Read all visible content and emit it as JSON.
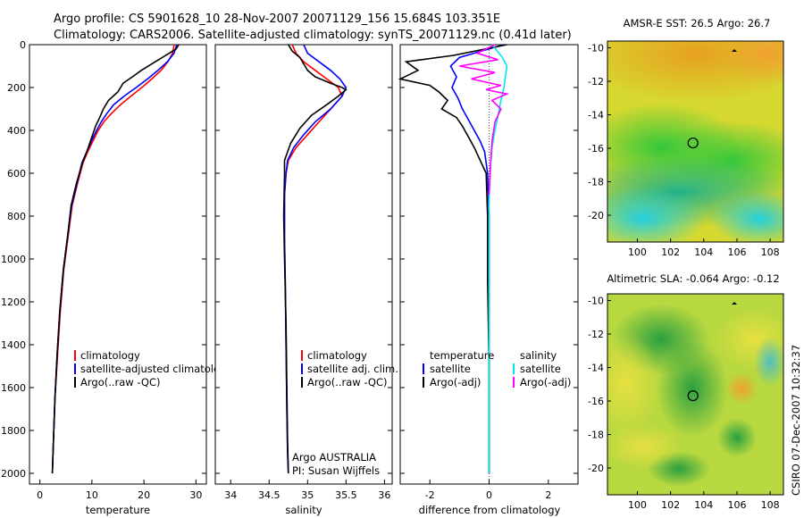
{
  "header": {
    "title_line1": "Argo profile: CS 5901628_10 28-Nov-2007 20071129_156 15.684S 103.351E",
    "title_line2": "Climatology: CARS2006. Satellite-adjusted climatology: synTS_20071129.nc (0.41d later)"
  },
  "footer": {
    "argo_label_1": "Argo AUSTRALIA",
    "argo_label_2": "PI: Susan Wijffels",
    "side_stamp": "CSIRO 07-Dec-2007 10:32:37"
  },
  "colors": {
    "climatology": "#ff0000",
    "satellite": "#0000ff",
    "argo": "#000000",
    "salinity_satellite": "#00e5ee",
    "salinity_argo": "#ff00ff"
  },
  "chart_data": [
    {
      "id": "temperature",
      "type": "line",
      "xlabel": "temperature",
      "ylabel": "",
      "xlim": [
        -2,
        32
      ],
      "ylim": [
        2050,
        0
      ],
      "xticks": [
        0,
        10,
        20,
        30
      ],
      "yticks": [
        0,
        200,
        400,
        600,
        800,
        1000,
        1200,
        1400,
        1600,
        1800,
        2000
      ],
      "legend": [
        "climatology",
        "satellite-adjusted climatology",
        "Argo(..raw -QC)"
      ],
      "series": [
        {
          "name": "climatology",
          "color": "#ff0000",
          "x": [
            25.8,
            25.5,
            24.6,
            23.3,
            21.5,
            19.6,
            17.5,
            15.5,
            13.8,
            12.3,
            11.2,
            10.2,
            9.2,
            8.3,
            7.2,
            6.2,
            5.4,
            4.6,
            3.9,
            3.4,
            2.9,
            2.6,
            2.4
          ],
          "y": [
            0,
            40,
            80,
            120,
            160,
            200,
            240,
            280,
            320,
            360,
            400,
            450,
            500,
            550,
            650,
            750,
            900,
            1050,
            1250,
            1450,
            1650,
            1850,
            2000
          ]
        },
        {
          "name": "satellite-adjusted climatology",
          "color": "#0000ff",
          "x": [
            26.3,
            25.8,
            24.5,
            22.7,
            20.7,
            18.5,
            16.2,
            14.2,
            12.9,
            11.8,
            10.9,
            9.9,
            9.0,
            8.1,
            7.1,
            6.1,
            5.3,
            4.5,
            3.8,
            3.3,
            2.9,
            2.6,
            2.4
          ],
          "y": [
            0,
            40,
            80,
            120,
            160,
            200,
            240,
            280,
            320,
            360,
            400,
            450,
            500,
            550,
            650,
            750,
            900,
            1050,
            1250,
            1450,
            1650,
            1850,
            2000
          ]
        },
        {
          "name": "Argo(..raw -QC)",
          "color": "#000000",
          "x": [
            26.7,
            26.2,
            23.5,
            21.5,
            19.5,
            17.8,
            16.0,
            15.0,
            13.2,
            12.2,
            11.5,
            10.7,
            10.0,
            9.0,
            8.2,
            7.0,
            6.0,
            5.3,
            4.5,
            3.8,
            3.3,
            2.9,
            2.6,
            2.4
          ],
          "y": [
            0,
            20,
            60,
            90,
            120,
            150,
            180,
            220,
            260,
            300,
            340,
            380,
            430,
            500,
            550,
            650,
            750,
            900,
            1050,
            1250,
            1450,
            1650,
            1850,
            2000
          ]
        }
      ]
    },
    {
      "id": "salinity",
      "type": "line",
      "xlabel": "salinity",
      "ylabel": "",
      "xlim": [
        33.8,
        36.1
      ],
      "ylim": [
        2050,
        0
      ],
      "xticks": [
        34,
        34.5,
        35,
        35.5,
        36
      ],
      "legend": [
        "climatology",
        "satellite adj. clim.",
        "Argo(..raw -QC)"
      ],
      "series": [
        {
          "name": "climatology",
          "color": "#ff0000",
          "x": [
            34.8,
            34.85,
            34.95,
            35.1,
            35.25,
            35.4,
            35.45,
            35.3,
            35.15,
            35.0,
            34.85,
            34.75,
            34.72,
            34.7,
            34.7,
            34.71,
            34.72,
            34.73,
            34.74,
            34.75
          ],
          "y": [
            0,
            40,
            80,
            120,
            160,
            200,
            240,
            300,
            360,
            420,
            480,
            540,
            600,
            700,
            900,
            1100,
            1400,
            1700,
            1900,
            2000
          ]
        },
        {
          "name": "satellite adj. clim.",
          "color": "#0000ff",
          "x": [
            34.95,
            35.0,
            35.15,
            35.3,
            35.42,
            35.5,
            35.45,
            35.3,
            35.1,
            34.95,
            34.82,
            34.74,
            34.72,
            34.7,
            34.7,
            34.71,
            34.72,
            34.73,
            34.74,
            34.75
          ],
          "y": [
            0,
            40,
            80,
            120,
            160,
            200,
            240,
            300,
            360,
            420,
            480,
            540,
            600,
            700,
            900,
            1100,
            1400,
            1700,
            1900,
            2000
          ]
        },
        {
          "name": "Argo(..raw -QC)",
          "color": "#000000",
          "x": [
            34.75,
            34.8,
            34.9,
            34.95,
            35.0,
            35.1,
            35.3,
            35.45,
            35.5,
            35.4,
            35.25,
            35.05,
            34.9,
            34.78,
            34.7,
            34.7,
            34.69,
            34.7,
            34.72,
            34.73,
            34.74,
            34.75
          ],
          "y": [
            0,
            30,
            60,
            90,
            120,
            150,
            180,
            200,
            210,
            240,
            280,
            330,
            390,
            460,
            540,
            600,
            800,
            1000,
            1300,
            1600,
            1850,
            2000
          ]
        }
      ]
    },
    {
      "id": "difference",
      "type": "line",
      "xlabel": "difference from climatology",
      "ylabel": "",
      "xlim": [
        -3,
        3
      ],
      "ylim": [
        2050,
        0
      ],
      "xticks": [
        -2,
        0,
        2
      ],
      "legend_temperature_header": "temperature",
      "legend_salinity_header": "salinity",
      "legend_temperature": [
        "satellite",
        "Argo(-adj)"
      ],
      "legend_salinity": [
        "satellite",
        "Argo(-adj)"
      ],
      "series": [
        {
          "name": "satellite",
          "group": "temperature",
          "color": "#0000ff",
          "x": [
            0.5,
            -1.0,
            -1.3,
            -1.1,
            -1.25,
            -1.05,
            -0.9,
            -0.7,
            -0.5,
            -0.3,
            -0.15,
            -0.05,
            0.0,
            0.0,
            0.0
          ],
          "y": [
            0,
            60,
            100,
            150,
            200,
            250,
            300,
            350,
            400,
            450,
            500,
            600,
            800,
            1200,
            2000
          ]
        },
        {
          "name": "Argo(-adj)",
          "group": "temperature",
          "color": "#000000",
          "x": [
            0.6,
            -1.2,
            -2.8,
            -2.4,
            -3.0,
            -2.0,
            -1.7,
            -1.4,
            -1.6,
            -1.1,
            -0.9,
            -0.7,
            -0.5,
            -0.3,
            -0.1,
            -0.05,
            -0.05,
            0.0,
            0.0
          ],
          "y": [
            0,
            50,
            80,
            120,
            160,
            190,
            220,
            260,
            300,
            340,
            380,
            430,
            480,
            540,
            600,
            800,
            1100,
            1500,
            2000
          ]
        },
        {
          "name": "satellite",
          "group": "salinity",
          "color": "#00e5ee",
          "x": [
            0.1,
            0.45,
            0.6,
            0.55,
            0.5,
            0.4,
            0.3,
            0.2,
            0.1,
            0.05,
            0.0,
            0.0,
            0.0
          ],
          "y": [
            0,
            60,
            100,
            150,
            200,
            260,
            330,
            400,
            480,
            560,
            700,
            1200,
            2000
          ]
        },
        {
          "name": "Argo(-adj)",
          "group": "salinity",
          "color": "#ff00ff",
          "x": [
            0.2,
            -0.4,
            0.3,
            -1.0,
            0.2,
            -0.6,
            0.4,
            -0.1,
            0.6,
            0.1,
            0.4,
            0.2,
            0.1,
            0.05,
            0.0
          ],
          "y": [
            0,
            40,
            70,
            100,
            130,
            160,
            190,
            210,
            230,
            260,
            300,
            360,
            450,
            550,
            700
          ]
        }
      ]
    },
    {
      "id": "sst_map",
      "type": "heatmap",
      "title": "AMSR-E SST: 26.5 Argo: 26.7",
      "xlim": [
        98.2,
        108.8
      ],
      "ylim": [
        -21.6,
        -9.6
      ],
      "xticks": [
        100,
        102,
        104,
        106,
        108
      ],
      "yticks": [
        -10,
        -12,
        -14,
        -16,
        -18,
        -20
      ],
      "marker": {
        "lon": 103.351,
        "lat": -15.684
      }
    },
    {
      "id": "sla_map",
      "type": "heatmap",
      "title": "Altimetric SLA: -0.064 Argo: -0.12",
      "xlim": [
        98.2,
        108.8
      ],
      "ylim": [
        -21.6,
        -9.6
      ],
      "xticks": [
        100,
        102,
        104,
        106,
        108
      ],
      "yticks": [
        -10,
        -12,
        -14,
        -16,
        -18,
        -20
      ],
      "marker": {
        "lon": 103.351,
        "lat": -15.684
      }
    }
  ]
}
